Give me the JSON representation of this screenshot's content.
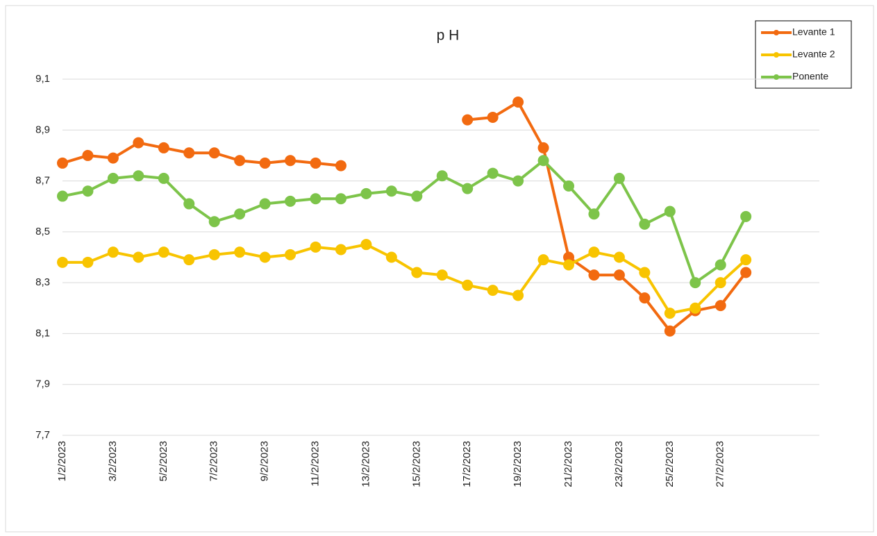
{
  "chart_data": {
    "type": "line",
    "title": "p H",
    "categories": [
      "1/2/2023",
      null,
      "3/2/2023",
      null,
      "5/2/2023",
      null,
      "7/2/2023",
      null,
      "9/2/2023",
      null,
      "11/2/2023",
      null,
      "13/2/2023",
      null,
      "15/2/2023",
      null,
      "17/2/2023",
      null,
      "19/2/2023",
      null,
      "21/2/2023",
      null,
      "23/2/2023",
      null,
      "25/2/2023",
      null,
      "27/2/2023",
      null
    ],
    "series": [
      {
        "name": "Levante 1",
        "color": "#f26a10",
        "values": [
          8.77,
          8.8,
          8.79,
          8.85,
          8.83,
          8.81,
          8.81,
          8.78,
          8.77,
          8.78,
          8.77,
          8.76,
          null,
          null,
          null,
          null,
          8.94,
          8.95,
          9.01,
          8.83,
          8.4,
          8.33,
          8.33,
          8.24,
          8.11,
          8.19,
          8.21,
          8.34
        ]
      },
      {
        "name": "Levante 2",
        "color": "#f8c400",
        "values": [
          8.38,
          8.38,
          8.42,
          8.4,
          8.42,
          8.39,
          8.41,
          8.42,
          8.4,
          8.41,
          8.44,
          8.43,
          8.45,
          8.4,
          8.34,
          8.33,
          8.29,
          8.27,
          8.25,
          8.39,
          8.37,
          8.42,
          8.4,
          8.34,
          8.18,
          8.2,
          8.3,
          8.39
        ]
      },
      {
        "name": "Ponente",
        "color": "#7dc44a",
        "values": [
          8.64,
          8.66,
          8.71,
          8.72,
          8.71,
          8.61,
          8.54,
          8.57,
          8.61,
          8.62,
          8.63,
          8.63,
          8.65,
          8.66,
          8.64,
          8.72,
          8.67,
          8.73,
          8.7,
          8.78,
          8.68,
          8.57,
          8.71,
          8.53,
          8.58,
          8.3,
          8.37,
          8.56
        ]
      }
    ],
    "ylim": [
      7.7,
      9.1
    ],
    "yticks": [
      {
        "value": 7.7,
        "label": "7,7"
      },
      {
        "value": 7.9,
        "label": "7,9"
      },
      {
        "value": 8.1,
        "label": "8,1"
      },
      {
        "value": 8.3,
        "label": "8,3"
      },
      {
        "value": 8.5,
        "label": "8,5"
      },
      {
        "value": 8.7,
        "label": "8,7"
      },
      {
        "value": 8.9,
        "label": "8,9"
      },
      {
        "value": 9.1,
        "label": "9,1"
      }
    ],
    "grid": true,
    "legend": "top-right"
  }
}
